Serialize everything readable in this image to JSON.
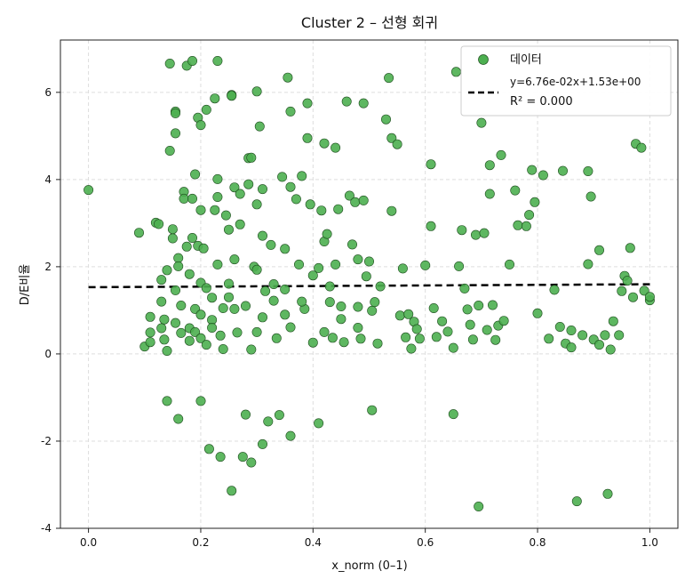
{
  "chart_data": {
    "type": "scatter",
    "title": "Cluster 2 – 선형 회귀",
    "xlabel": "x_norm (0–1)",
    "ylabel": "D/E비율",
    "xlim": [
      -0.05,
      1.05
    ],
    "ylim": [
      -4,
      7.2
    ],
    "xticks": [
      0.0,
      0.2,
      0.4,
      0.6,
      0.8,
      1.0
    ],
    "xtick_labels": [
      "0.0",
      "0.2",
      "0.4",
      "0.6",
      "0.8",
      "1.0"
    ],
    "yticks": [
      -4,
      -2,
      0,
      2,
      4,
      6
    ],
    "ytick_labels": [
      "-4",
      "-2",
      "0",
      "2",
      "4",
      "6"
    ],
    "grid": true,
    "legend_position": "top-right",
    "series": [
      {
        "name": "데이터",
        "kind": "scatter",
        "color": "#4caf50",
        "edge_color": "#1f4f1f",
        "points": [
          [
            0.0,
            3.76
          ],
          [
            0.09,
            2.78
          ],
          [
            0.1,
            0.17
          ],
          [
            0.11,
            0.49
          ],
          [
            0.11,
            0.85
          ],
          [
            0.11,
            0.27
          ],
          [
            0.12,
            3.01
          ],
          [
            0.125,
            2.98
          ],
          [
            0.13,
            1.7
          ],
          [
            0.13,
            1.2
          ],
          [
            0.13,
            0.59
          ],
          [
            0.135,
            0.79
          ],
          [
            0.135,
            0.33
          ],
          [
            0.14,
            1.92
          ],
          [
            0.145,
            6.66
          ],
          [
            0.145,
            4.66
          ],
          [
            0.14,
            0.07
          ],
          [
            0.14,
            -1.08
          ],
          [
            0.15,
            2.86
          ],
          [
            0.15,
            2.65
          ],
          [
            0.155,
            5.56
          ],
          [
            0.155,
            5.52
          ],
          [
            0.155,
            5.06
          ],
          [
            0.155,
            1.46
          ],
          [
            0.155,
            0.71
          ],
          [
            0.16,
            2.2
          ],
          [
            0.165,
            1.11
          ],
          [
            0.165,
            0.48
          ],
          [
            0.16,
            2.01
          ],
          [
            0.16,
            -1.49
          ],
          [
            0.17,
            3.72
          ],
          [
            0.17,
            3.56
          ],
          [
            0.175,
            6.61
          ],
          [
            0.175,
            2.46
          ],
          [
            0.18,
            1.83
          ],
          [
            0.18,
            0.59
          ],
          [
            0.185,
            6.72
          ],
          [
            0.185,
            3.56
          ],
          [
            0.185,
            2.66
          ],
          [
            0.19,
            4.12
          ],
          [
            0.19,
            1.03
          ],
          [
            0.19,
            0.5
          ],
          [
            0.195,
            5.42
          ],
          [
            0.195,
            2.48
          ],
          [
            0.2,
            5.25
          ],
          [
            0.2,
            3.3
          ],
          [
            0.2,
            1.63
          ],
          [
            0.2,
            0.36
          ],
          [
            0.2,
            -1.08
          ],
          [
            0.205,
            2.42
          ],
          [
            0.21,
            5.6
          ],
          [
            0.21,
            1.51
          ],
          [
            0.21,
            0.21
          ],
          [
            0.215,
            -2.18
          ],
          [
            0.22,
            1.29
          ],
          [
            0.22,
            0.78
          ],
          [
            0.225,
            5.86
          ],
          [
            0.225,
            3.3
          ],
          [
            0.23,
            6.72
          ],
          [
            0.23,
            4.01
          ],
          [
            0.23,
            3.6
          ],
          [
            0.23,
            2.05
          ],
          [
            0.235,
            0.42
          ],
          [
            0.235,
            -2.36
          ],
          [
            0.24,
            1.05
          ],
          [
            0.24,
            0.11
          ],
          [
            0.245,
            3.18
          ],
          [
            0.25,
            2.85
          ],
          [
            0.25,
            1.61
          ],
          [
            0.255,
            5.94
          ],
          [
            0.255,
            5.92
          ],
          [
            0.255,
            -3.14
          ],
          [
            0.26,
            3.82
          ],
          [
            0.26,
            2.17
          ],
          [
            0.26,
            1.03
          ],
          [
            0.265,
            0.49
          ],
          [
            0.27,
            3.67
          ],
          [
            0.27,
            2.97
          ],
          [
            0.275,
            -2.36
          ],
          [
            0.28,
            -1.39
          ],
          [
            0.285,
            3.89
          ],
          [
            0.285,
            4.49
          ],
          [
            0.29,
            4.5
          ],
          [
            0.29,
            0.1
          ],
          [
            0.29,
            -2.49
          ],
          [
            0.295,
            2.0
          ],
          [
            0.3,
            6.02
          ],
          [
            0.3,
            3.43
          ],
          [
            0.3,
            1.93
          ],
          [
            0.305,
            5.22
          ],
          [
            0.31,
            3.78
          ],
          [
            0.31,
            2.71
          ],
          [
            0.31,
            0.84
          ],
          [
            0.31,
            -2.07
          ],
          [
            0.315,
            1.44
          ],
          [
            0.32,
            -1.55
          ],
          [
            0.325,
            2.5
          ],
          [
            0.33,
            1.22
          ],
          [
            0.335,
            0.36
          ],
          [
            0.34,
            -1.4
          ],
          [
            0.345,
            4.06
          ],
          [
            0.35,
            2.41
          ],
          [
            0.35,
            1.48
          ],
          [
            0.355,
            6.34
          ],
          [
            0.36,
            5.56
          ],
          [
            0.36,
            3.83
          ],
          [
            0.36,
            0.61
          ],
          [
            0.36,
            -1.88
          ],
          [
            0.37,
            3.55
          ],
          [
            0.375,
            2.05
          ],
          [
            0.38,
            4.08
          ],
          [
            0.385,
            1.03
          ],
          [
            0.39,
            4.95
          ],
          [
            0.39,
            5.75
          ],
          [
            0.395,
            3.43
          ],
          [
            0.4,
            1.8
          ],
          [
            0.4,
            0.26
          ],
          [
            0.41,
            1.97
          ],
          [
            0.41,
            -1.59
          ],
          [
            0.415,
            3.29
          ],
          [
            0.42,
            4.83
          ],
          [
            0.42,
            2.58
          ],
          [
            0.425,
            2.75
          ],
          [
            0.43,
            1.55
          ],
          [
            0.43,
            1.19
          ],
          [
            0.435,
            0.37
          ],
          [
            0.44,
            4.73
          ],
          [
            0.44,
            2.05
          ],
          [
            0.445,
            3.32
          ],
          [
            0.45,
            1.09
          ],
          [
            0.455,
            0.27
          ],
          [
            0.46,
            5.79
          ],
          [
            0.465,
            3.63
          ],
          [
            0.47,
            2.51
          ],
          [
            0.475,
            3.48
          ],
          [
            0.48,
            2.17
          ],
          [
            0.48,
            1.08
          ],
          [
            0.485,
            0.35
          ],
          [
            0.49,
            5.75
          ],
          [
            0.49,
            3.52
          ],
          [
            0.495,
            1.78
          ],
          [
            0.5,
            2.12
          ],
          [
            0.505,
            0.99
          ],
          [
            0.505,
            -1.29
          ],
          [
            0.51,
            1.19
          ],
          [
            0.515,
            0.24
          ],
          [
            0.52,
            1.55
          ],
          [
            0.53,
            5.38
          ],
          [
            0.535,
            6.33
          ],
          [
            0.54,
            4.95
          ],
          [
            0.54,
            3.28
          ],
          [
            0.55,
            4.81
          ],
          [
            0.555,
            0.88
          ],
          [
            0.56,
            1.96
          ],
          [
            0.565,
            0.38
          ],
          [
            0.57,
            0.91
          ],
          [
            0.575,
            0.12
          ],
          [
            0.58,
            0.74
          ],
          [
            0.585,
            0.57
          ],
          [
            0.59,
            0.35
          ],
          [
            0.6,
            2.03
          ],
          [
            0.61,
            4.35
          ],
          [
            0.61,
            2.93
          ],
          [
            0.615,
            1.05
          ],
          [
            0.62,
            0.39
          ],
          [
            0.63,
            0.75
          ],
          [
            0.64,
            0.51
          ],
          [
            0.65,
            0.14
          ],
          [
            0.65,
            -1.38
          ],
          [
            0.655,
            6.47
          ],
          [
            0.66,
            2.01
          ],
          [
            0.665,
            2.84
          ],
          [
            0.67,
            1.5
          ],
          [
            0.675,
            1.02
          ],
          [
            0.68,
            0.67
          ],
          [
            0.685,
            0.33
          ],
          [
            0.69,
            2.73
          ],
          [
            0.695,
            1.11
          ],
          [
            0.695,
            -3.5
          ],
          [
            0.7,
            5.3
          ],
          [
            0.705,
            2.77
          ],
          [
            0.71,
            0.55
          ],
          [
            0.715,
            4.33
          ],
          [
            0.715,
            3.67
          ],
          [
            0.72,
            1.12
          ],
          [
            0.725,
            0.32
          ],
          [
            0.73,
            0.65
          ],
          [
            0.735,
            4.56
          ],
          [
            0.74,
            0.76
          ],
          [
            0.75,
            2.05
          ],
          [
            0.76,
            3.75
          ],
          [
            0.765,
            2.95
          ],
          [
            0.78,
            2.93
          ],
          [
            0.785,
            3.19
          ],
          [
            0.79,
            4.22
          ],
          [
            0.795,
            3.48
          ],
          [
            0.8,
            0.93
          ],
          [
            0.81,
            4.1
          ],
          [
            0.82,
            0.35
          ],
          [
            0.83,
            1.47
          ],
          [
            0.84,
            0.62
          ],
          [
            0.845,
            4.2
          ],
          [
            0.85,
            0.24
          ],
          [
            0.86,
            0.15
          ],
          [
            0.86,
            0.54
          ],
          [
            0.87,
            -3.38
          ],
          [
            0.88,
            0.43
          ],
          [
            0.89,
            2.06
          ],
          [
            0.89,
            4.19
          ],
          [
            0.895,
            3.61
          ],
          [
            0.9,
            0.33
          ],
          [
            0.91,
            2.38
          ],
          [
            0.91,
            0.21
          ],
          [
            0.92,
            0.43
          ],
          [
            0.925,
            -3.21
          ],
          [
            0.93,
            0.1
          ],
          [
            0.935,
            0.75
          ],
          [
            0.945,
            0.43
          ],
          [
            0.95,
            1.44
          ],
          [
            0.955,
            1.79
          ],
          [
            0.96,
            1.68
          ],
          [
            0.965,
            2.43
          ],
          [
            0.97,
            1.3
          ],
          [
            0.975,
            4.82
          ],
          [
            0.985,
            4.73
          ],
          [
            0.99,
            1.45
          ],
          [
            1.0,
            1.23
          ],
          [
            1.0,
            1.31
          ],
          [
            0.3,
            0.5
          ],
          [
            0.25,
            1.3
          ],
          [
            0.45,
            0.8
          ],
          [
            0.35,
            0.9
          ],
          [
            0.2,
            0.9
          ],
          [
            0.28,
            1.1
          ],
          [
            0.42,
            0.5
          ],
          [
            0.33,
            1.6
          ],
          [
            0.18,
            0.3
          ],
          [
            0.48,
            0.6
          ],
          [
            0.38,
            1.2
          ],
          [
            0.22,
            0.6
          ]
        ]
      },
      {
        "name": "y=6.76e-02x+1.53e+00",
        "name_line2": "R² = 0.000",
        "kind": "line",
        "color": "#000000",
        "dash": "dashed",
        "slope": 0.0676,
        "intercept": 1.53,
        "x_range": [
          0.0,
          1.0
        ]
      }
    ]
  }
}
